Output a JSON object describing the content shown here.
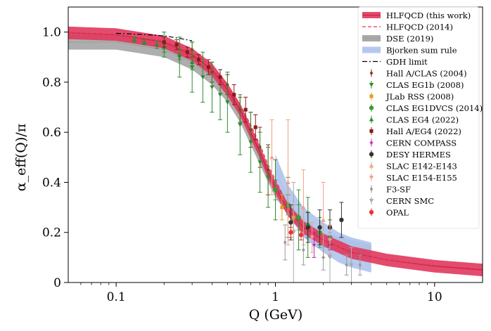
{
  "chart_data": {
    "type": "scatter",
    "x_scale": "log",
    "xlim": [
      0.05,
      20
    ],
    "ylim": [
      0,
      1.1
    ],
    "xlabel": "Q (GeV)",
    "ylabel": "α_eff(Q)/π",
    "x_ticks": [
      {
        "value": 0.1,
        "label": "0.1"
      },
      {
        "value": 1,
        "label": "1"
      },
      {
        "value": 10,
        "label": "10"
      }
    ],
    "y_ticks": [
      {
        "value": 0.0,
        "label": "0"
      },
      {
        "value": 0.2,
        "label": "0.2"
      },
      {
        "value": 0.4,
        "label": "0.4"
      },
      {
        "value": 0.6,
        "label": "0.6"
      },
      {
        "value": 0.8,
        "label": "0.8"
      },
      {
        "value": 1.0,
        "label": "1.0"
      }
    ],
    "legend_position": "right",
    "curves": [
      {
        "name": "HLFQCD (this work)",
        "style": "band",
        "color": "#e0385c",
        "points": [
          [
            0.05,
            0.997
          ],
          [
            0.1,
            0.99
          ],
          [
            0.2,
            0.96
          ],
          [
            0.3,
            0.91
          ],
          [
            0.4,
            0.85
          ],
          [
            0.5,
            0.77
          ],
          [
            0.6,
            0.69
          ],
          [
            0.7,
            0.6
          ],
          [
            0.8,
            0.52
          ],
          [
            0.9,
            0.44
          ],
          [
            1.0,
            0.38
          ],
          [
            1.2,
            0.29
          ],
          [
            1.5,
            0.22
          ],
          [
            2.0,
            0.17
          ],
          [
            3.0,
            0.12
          ],
          [
            5.0,
            0.09
          ],
          [
            10.0,
            0.065
          ],
          [
            20.0,
            0.05
          ]
        ]
      },
      {
        "name": "HLFQCD (2014)",
        "style": "dashed",
        "color": "#e0385c",
        "points": [
          [
            0.05,
            0.998
          ],
          [
            0.1,
            0.99
          ],
          [
            0.2,
            0.965
          ],
          [
            0.3,
            0.92
          ],
          [
            0.4,
            0.86
          ],
          [
            0.5,
            0.79
          ],
          [
            0.6,
            0.71
          ],
          [
            0.7,
            0.63
          ],
          [
            0.8,
            0.55
          ],
          [
            0.9,
            0.47
          ],
          [
            1.0,
            0.41
          ],
          [
            1.2,
            0.31
          ],
          [
            1.5,
            0.23
          ],
          [
            2.0,
            0.17
          ],
          [
            3.0,
            0.12
          ],
          [
            5.0,
            0.09
          ],
          [
            10.0,
            0.068
          ],
          [
            20.0,
            0.053
          ]
        ]
      },
      {
        "name": "DSE (2019)",
        "style": "band",
        "color": "#a0a0a0",
        "points": [
          [
            0.05,
            0.96
          ],
          [
            0.1,
            0.96
          ],
          [
            0.2,
            0.93
          ],
          [
            0.3,
            0.88
          ],
          [
            0.4,
            0.82
          ],
          [
            0.5,
            0.75
          ],
          [
            0.6,
            0.67
          ],
          [
            0.7,
            0.58
          ],
          [
            0.8,
            0.5
          ],
          [
            0.9,
            0.43
          ],
          [
            1.0,
            0.37
          ],
          [
            1.3,
            0.27
          ],
          [
            1.6,
            0.21
          ],
          [
            2.0,
            0.17
          ],
          [
            3.0,
            0.14
          ],
          [
            4.0,
            0.12
          ]
        ]
      },
      {
        "name": "Bjorken sum rule",
        "style": "band",
        "color": "#aec3ec",
        "points": [
          [
            1.0,
            0.45
          ],
          [
            1.2,
            0.33
          ],
          [
            1.5,
            0.24
          ],
          [
            2.0,
            0.18
          ],
          [
            2.5,
            0.14
          ],
          [
            3.0,
            0.12
          ],
          [
            4.0,
            0.1
          ]
        ]
      },
      {
        "name": "GDH limit",
        "style": "dashdot",
        "color": "#000000",
        "points": [
          [
            0.1,
            0.995
          ],
          [
            0.15,
            0.99
          ],
          [
            0.2,
            0.985
          ],
          [
            0.25,
            0.975
          ],
          [
            0.3,
            0.965
          ]
        ]
      }
    ],
    "series": [
      {
        "name": "Hall A/CLAS (2004)",
        "marker": "diamond",
        "color": "#8b2e16",
        "points": [
          [
            0.3,
            0.93,
            0.03
          ],
          [
            0.4,
            0.84,
            0.04
          ],
          [
            0.5,
            0.79,
            0.04
          ],
          [
            0.6,
            0.69,
            0.05
          ],
          [
            0.7,
            0.61,
            0.07
          ],
          [
            0.8,
            0.54,
            0.08
          ],
          [
            0.9,
            0.45,
            0.1
          ]
        ]
      },
      {
        "name": "CLAS EG1b (2008)",
        "marker": "triangle-down",
        "color": "#2e8b2e",
        "points": [
          [
            0.2,
            0.95,
            0.05
          ],
          [
            0.25,
            0.9,
            0.08
          ],
          [
            0.3,
            0.86,
            0.1
          ],
          [
            0.35,
            0.82,
            0.1
          ],
          [
            0.4,
            0.78,
            0.1
          ],
          [
            0.45,
            0.75,
            0.1
          ],
          [
            0.5,
            0.72,
            0.12
          ],
          [
            0.6,
            0.63,
            0.12
          ],
          [
            0.7,
            0.56,
            0.12
          ],
          [
            0.8,
            0.48,
            0.12
          ],
          [
            0.9,
            0.42,
            0.12
          ],
          [
            1.0,
            0.37,
            0.12
          ],
          [
            1.2,
            0.3,
            0.12
          ],
          [
            1.4,
            0.25,
            0.12
          ],
          [
            1.6,
            0.22,
            0.12
          ]
        ]
      },
      {
        "name": "JLab RSS (2008)",
        "marker": "square",
        "color": "#e0a020",
        "points": [
          [
            1.1,
            0.3,
            0.05
          ],
          [
            1.3,
            0.26,
            0.05
          ]
        ]
      },
      {
        "name": "CLAS EG1DVCS (2014)",
        "marker": "circle",
        "color": "#3a9a3a",
        "points": [
          [
            1.0,
            0.37,
            0.04
          ],
          [
            1.2,
            0.31,
            0.04
          ],
          [
            1.4,
            0.26,
            0.05
          ],
          [
            1.6,
            0.23,
            0.05
          ],
          [
            1.9,
            0.2,
            0.06
          ],
          [
            2.2,
            0.18,
            0.07
          ]
        ]
      },
      {
        "name": "CLAS EG4 (2022)",
        "marker": "triangle-up",
        "color": "#2e8b2e",
        "points": [
          [
            0.13,
            0.97,
            0.01
          ],
          [
            0.15,
            0.96,
            0.01
          ],
          [
            0.18,
            0.95,
            0.015
          ],
          [
            0.2,
            0.94,
            0.02
          ],
          [
            0.25,
            0.91,
            0.02
          ],
          [
            0.3,
            0.88,
            0.03
          ]
        ]
      },
      {
        "name": "Hall A/EG4 (2022)",
        "marker": "square",
        "color": "#8b1a1a",
        "points": [
          [
            0.2,
            0.96,
            0.02
          ],
          [
            0.24,
            0.95,
            0.02
          ],
          [
            0.28,
            0.92,
            0.02
          ],
          [
            0.33,
            0.89,
            0.02
          ],
          [
            0.38,
            0.86,
            0.03
          ],
          [
            0.45,
            0.82,
            0.03
          ],
          [
            0.55,
            0.75,
            0.04
          ],
          [
            0.65,
            0.69,
            0.05
          ],
          [
            0.75,
            0.62,
            0.05
          ]
        ]
      },
      {
        "name": "CERN COMPASS",
        "marker": "star",
        "color": "#c020c0",
        "points": [
          [
            1.75,
            0.15,
            0.05
          ],
          [
            2.2,
            0.18,
            0.05
          ]
        ]
      },
      {
        "name": "DESY HERMES",
        "marker": "circle",
        "color": "#333333",
        "points": [
          [
            1.25,
            0.24,
            0.07
          ],
          [
            1.6,
            0.22,
            0.06
          ],
          [
            1.9,
            0.22,
            0.07
          ],
          [
            2.2,
            0.22,
            0.07
          ],
          [
            2.6,
            0.25,
            0.07
          ]
        ]
      },
      {
        "name": "SLAC E142-E143",
        "marker": "triangle-up",
        "color": "#f0a080",
        "points": [
          [
            0.95,
            0.5,
            0.15
          ],
          [
            1.2,
            0.4,
            0.25
          ],
          [
            1.5,
            0.3,
            0.15
          ],
          [
            2.0,
            0.25,
            0.15
          ]
        ]
      },
      {
        "name": "SLAC E154-E155",
        "marker": "triangle-down",
        "color": "#f0a080",
        "points": [
          [
            1.7,
            0.18,
            0.06
          ],
          [
            2.2,
            0.17,
            0.06
          ]
        ]
      },
      {
        "name": "F3-SF",
        "marker": "diamond",
        "color": "#999999",
        "points": [
          [
            1.15,
            0.16,
            0.07
          ],
          [
            1.5,
            0.13,
            0.06
          ],
          [
            2.0,
            0.1,
            0.05
          ],
          [
            2.8,
            0.07,
            0.04
          ],
          [
            3.4,
            0.07,
            0.04
          ]
        ]
      },
      {
        "name": "CERN SMC",
        "marker": "triangle-down",
        "color": "#aaaaaa",
        "points": [
          [
            1.3,
            0.2,
            0.2
          ],
          [
            2.2,
            0.1,
            0.1
          ],
          [
            3.0,
            0.07,
            0.07
          ]
        ]
      },
      {
        "name": "OPAL",
        "marker": "circle",
        "color": "#ee3333",
        "points": [
          [
            1.25,
            0.2,
            0.02
          ],
          [
            1.45,
            0.19,
            0.02
          ]
        ]
      }
    ]
  }
}
